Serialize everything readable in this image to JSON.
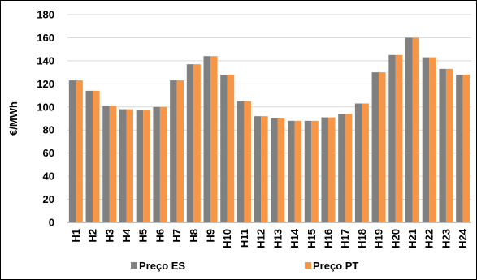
{
  "chart_data": {
    "type": "bar",
    "categories": [
      "H1",
      "H2",
      "H3",
      "H4",
      "H5",
      "H6",
      "H7",
      "H8",
      "H9",
      "H10",
      "H11",
      "H12",
      "H13",
      "H14",
      "H15",
      "H16",
      "H17",
      "H18",
      "H19",
      "H20",
      "H21",
      "H22",
      "H23",
      "H24"
    ],
    "series": [
      {
        "name": "Preço ES",
        "color": "#808080",
        "values": [
          123,
          114,
          101,
          98,
          97,
          100,
          123,
          137,
          144,
          128,
          105,
          92,
          90,
          88,
          88,
          91,
          94,
          103,
          130,
          145,
          160,
          143,
          133,
          128
        ]
      },
      {
        "name": "Preço PT",
        "color": "#F79646",
        "values": [
          123,
          114,
          101,
          98,
          97,
          100,
          123,
          137,
          144,
          128,
          105,
          92,
          90,
          88,
          88,
          91,
          94,
          103,
          130,
          145,
          160,
          143,
          133,
          128
        ]
      }
    ],
    "title": "",
    "xlabel": "",
    "ylabel": "€/MWh",
    "ylim": [
      0,
      180
    ],
    "yticks": [
      0,
      20,
      40,
      60,
      80,
      100,
      120,
      140,
      160,
      180
    ],
    "grid": true,
    "legend": "bottom"
  }
}
